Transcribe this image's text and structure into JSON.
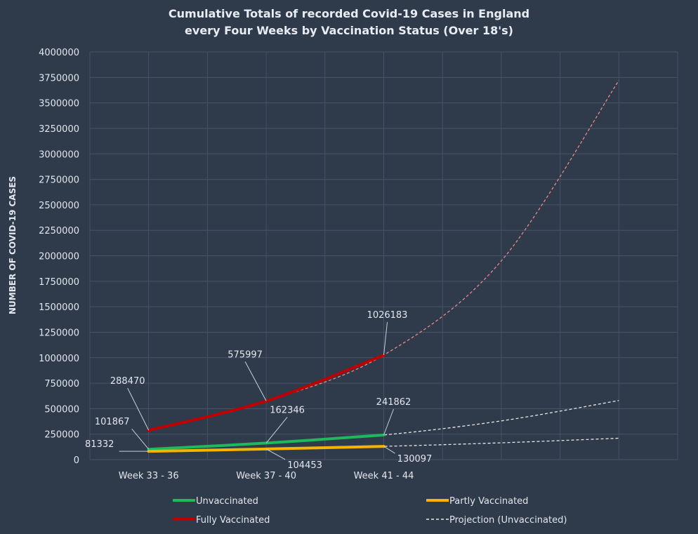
{
  "chart_data": {
    "type": "line",
    "title_lines": [
      "Cumulative Totals of recorded Covid-19 Cases in England",
      "every Four Weeks by Vaccination Status (Over 18's)"
    ],
    "ylabel": "NUMBER OF COVID-19 CASES",
    "xlabel": "",
    "ylim": [
      0,
      4000000
    ],
    "ytick_step": 250000,
    "yticks": [
      "0",
      "250000",
      "500000",
      "750000",
      "1000000",
      "1250000",
      "1500000",
      "1750000",
      "2000000",
      "2250000",
      "2500000",
      "2750000",
      "3000000",
      "3250000",
      "3500000",
      "3750000",
      "4000000"
    ],
    "categories": [
      "Week 33 - 36",
      "Week 37 - 40",
      "Week 41 - 44"
    ],
    "projection_period_count": 5,
    "series": [
      {
        "name": "Unvaccinated",
        "key": "unvaccinated",
        "values": [
          101867,
          162346,
          241862
        ],
        "color": "#1fb85a"
      },
      {
        "name": "Partly Vaccinated",
        "key": "partly",
        "values": [
          81332,
          104453,
          130097
        ],
        "color": "#f5b400"
      },
      {
        "name": "Fully Vaccinated",
        "key": "fully",
        "values": [
          288470,
          575997,
          1026183
        ],
        "color": "#c00000"
      }
    ],
    "projections": [
      {
        "key": "proj-fully",
        "values": [
          288470,
          575997,
          1026183,
          1950000,
          3720000
        ],
        "color": "#e58a8a"
      },
      {
        "key": "proj-unvaccinated",
        "values": [
          101867,
          162346,
          241862,
          380000,
          580000
        ],
        "color": "#e8e8e8"
      },
      {
        "key": "proj-partly",
        "values": [
          81332,
          104453,
          130097,
          165000,
          210000
        ],
        "color": "#e8e8e8"
      }
    ],
    "data_labels": {
      "fully": [
        "288470",
        "575997",
        "1026183"
      ],
      "unvaccinated": [
        "101867",
        "162346",
        "241862"
      ],
      "partly": [
        "81332",
        "104453",
        "130097"
      ]
    },
    "legend": [
      {
        "label": "Unvaccinated",
        "color": "#1fb85a",
        "style": "solid"
      },
      {
        "label": "Partly Vaccinated",
        "color": "#f5b400",
        "style": "solid"
      },
      {
        "label": "Fully Vaccinated",
        "color": "#c00000",
        "style": "solid"
      },
      {
        "label": "Projection (Unvaccinated)",
        "color": "#e8e8e8",
        "style": "dashed"
      }
    ],
    "legend_position": "bottom",
    "grid": true
  }
}
